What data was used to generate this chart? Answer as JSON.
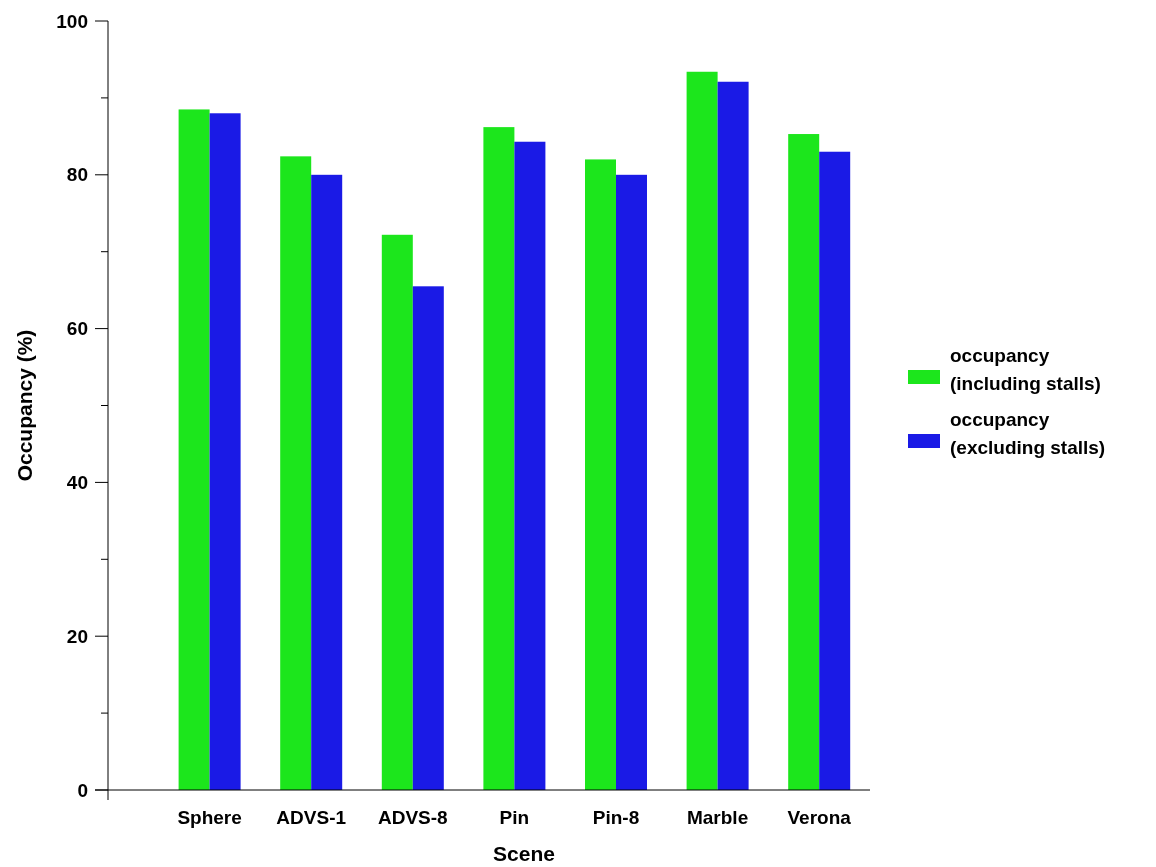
{
  "chart_data": {
    "type": "bar",
    "xlabel": "Scene",
    "ylabel": "Occupancy (%)",
    "categories": [
      "Sphere",
      "ADVS-1",
      "ADVS-8",
      "Pin",
      "Pin-8",
      "Marble",
      "Verona"
    ],
    "series": [
      {
        "name": "occupancy (including stalls)",
        "color": "#1ce61c",
        "values": [
          88.5,
          82.4,
          72.2,
          86.2,
          82.0,
          93.4,
          85.3
        ]
      },
      {
        "name": "occupancy (excluding stalls)",
        "color": "#1a1ae6",
        "values": [
          88.0,
          80.0,
          65.5,
          84.3,
          80.0,
          92.1,
          83.0
        ]
      }
    ],
    "ylim": [
      0,
      100
    ],
    "yticks": [
      0,
      {
        "value": 10,
        "label": null
      },
      20,
      {
        "value": 30,
        "label": null
      },
      40,
      {
        "value": 50,
        "label": null
      },
      60,
      {
        "value": 70,
        "label": null
      },
      80,
      {
        "value": 90,
        "label": null
      },
      100
    ],
    "legend": "right",
    "grid": false
  }
}
